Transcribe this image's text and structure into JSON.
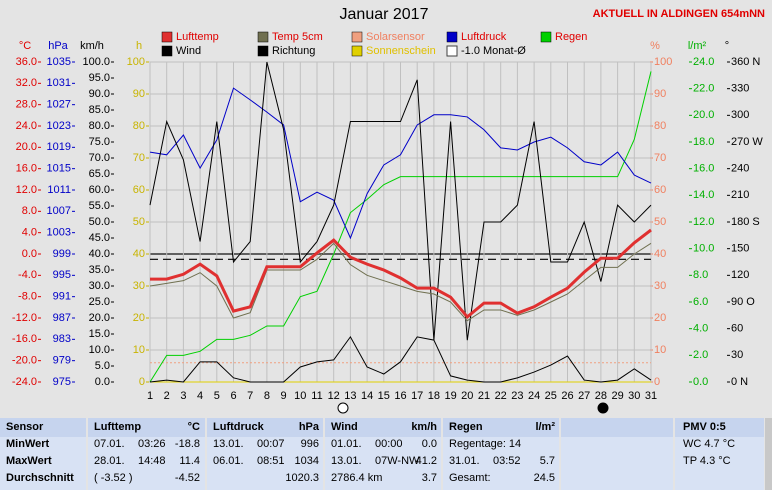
{
  "chart_data": {
    "type": "line",
    "title": "Januar 2017",
    "subtitle": "AKTUELL IN ALDINGEN 654mNN",
    "x": [
      1,
      2,
      3,
      4,
      5,
      6,
      7,
      8,
      9,
      10,
      11,
      12,
      13,
      14,
      15,
      16,
      17,
      18,
      19,
      20,
      21,
      22,
      23,
      24,
      25,
      26,
      27,
      28,
      29,
      30,
      31
    ],
    "xlim": [
      1,
      31
    ],
    "grid": true,
    "axes": {
      "temp": {
        "label": "°C",
        "lim": [
          -24,
          36
        ],
        "ticks": [
          {
            "value": 36,
            "label": "36.0"
          },
          {
            "value": 32,
            "label": "32.0"
          },
          {
            "value": 28,
            "label": "28.0"
          },
          {
            "value": 24,
            "label": "24.0"
          },
          {
            "value": 20,
            "label": "20.0"
          },
          {
            "value": 16,
            "label": "16.0"
          },
          {
            "value": 12,
            "label": "12.0"
          },
          {
            "value": 8,
            "label": "8.0"
          },
          {
            "value": 4,
            "label": "4.0"
          },
          {
            "value": 0,
            "label": "0.0"
          },
          {
            "value": -4,
            "label": "-4.0"
          },
          {
            "value": -8,
            "label": "-8.0"
          },
          {
            "value": -12,
            "label": "-12.0"
          },
          {
            "value": -16,
            "label": "-16.0"
          },
          {
            "value": -20,
            "label": "-20.0"
          },
          {
            "value": -24,
            "label": "-24.0"
          }
        ]
      },
      "hpa": {
        "label": "hPa",
        "lim": [
          975,
          1035
        ],
        "ticks": [
          1035,
          1031,
          1027,
          1023,
          1019,
          1015,
          1011,
          1007,
          1003,
          999,
          995,
          991,
          987,
          983,
          979,
          975
        ]
      },
      "kmh": {
        "label": "km/h",
        "lim": [
          0,
          100
        ],
        "ticks": [
          {
            "value": 100,
            "label": "100.0"
          },
          {
            "value": 95,
            "label": "95.0"
          },
          {
            "value": 90,
            "label": "90.0"
          },
          {
            "value": 85,
            "label": "85.0"
          },
          {
            "value": 80,
            "label": "80.0"
          },
          {
            "value": 75,
            "label": "75.0"
          },
          {
            "value": 70,
            "label": "70.0"
          },
          {
            "value": 65,
            "label": "65.0"
          },
          {
            "value": 60,
            "label": "60.0"
          },
          {
            "value": 55,
            "label": "55.0"
          },
          {
            "value": 50,
            "label": "50.0"
          },
          {
            "value": 45,
            "label": "45.0"
          },
          {
            "value": 40,
            "label": "40.0"
          },
          {
            "value": 35,
            "label": "35.0"
          },
          {
            "value": 30,
            "label": "30.0"
          },
          {
            "value": 25,
            "label": "25.0"
          },
          {
            "value": 20,
            "label": "20.0"
          },
          {
            "value": 15,
            "label": "15.0"
          },
          {
            "value": 10,
            "label": "10.0"
          },
          {
            "value": 5,
            "label": "5.0"
          },
          {
            "value": 0,
            "label": "0.0"
          }
        ]
      },
      "h": {
        "label": "h",
        "lim": [
          0,
          100
        ],
        "ticks": [
          100,
          90,
          80,
          70,
          60,
          50,
          40,
          30,
          20,
          10,
          0
        ]
      },
      "pct": {
        "label": "%",
        "lim": [
          0,
          100
        ],
        "ticks": [
          100,
          90,
          80,
          70,
          60,
          50,
          40,
          30,
          20,
          10,
          0
        ]
      },
      "rain": {
        "label": "l/m²",
        "lim": [
          0,
          24
        ],
        "ticks": [
          {
            "value": 24,
            "label": "24.0"
          },
          {
            "value": 22,
            "label": "22.0"
          },
          {
            "value": 20,
            "label": "20.0"
          },
          {
            "value": 18,
            "label": "18.0"
          },
          {
            "value": 16,
            "label": "16.0"
          },
          {
            "value": 14,
            "label": "14.0"
          },
          {
            "value": 12,
            "label": "12.0"
          },
          {
            "value": 10,
            "label": "10.0"
          },
          {
            "value": 8,
            "label": "8.0"
          },
          {
            "value": 6,
            "label": "6.0"
          },
          {
            "value": 4,
            "label": "4.0"
          },
          {
            "value": 2,
            "label": "2.0"
          },
          {
            "value": 0,
            "label": "0.0"
          }
        ]
      },
      "dir": {
        "label": "°",
        "lim": [
          0,
          360
        ],
        "ticks": [
          {
            "value": 360,
            "label": "360 N"
          },
          330,
          300,
          {
            "value": 270,
            "label": "270 W"
          },
          240,
          210,
          {
            "value": 180,
            "label": "180 S"
          },
          150,
          120,
          {
            "value": 90,
            "label": "90 O"
          },
          60,
          30,
          {
            "value": 0,
            "label": "0 N"
          }
        ]
      }
    },
    "series": [
      {
        "name": "Lufttemp",
        "color": "#e03030",
        "axis": "temp",
        "values": [
          -4.7,
          -4.7,
          -3.8,
          -1.9,
          -4.1,
          -10.7,
          -9.9,
          -2.4,
          -2.4,
          -2.4,
          0.2,
          2.6,
          -0.6,
          -1.9,
          -3.0,
          -4.5,
          -6.4,
          -6.4,
          -8.1,
          -11.8,
          -9.2,
          -9.2,
          -11.1,
          -9.9,
          -8.1,
          -6.4,
          -3.4,
          -0.8,
          -0.8,
          2.1,
          4.5
        ]
      },
      {
        "name": "Temp 5cm",
        "color": "#707050",
        "axis": "temp",
        "values": [
          -6.0,
          -5.5,
          -5.0,
          -3.5,
          -6.0,
          -12.0,
          -11.0,
          -3.0,
          -3.0,
          -3.0,
          -1.0,
          2.0,
          -2.0,
          -4.0,
          -5.0,
          -6.0,
          -7.0,
          -7.5,
          -9.0,
          -12.5,
          -10.5,
          -10.5,
          -11.5,
          -10.5,
          -9.0,
          -7.5,
          -5.0,
          -2.5,
          -2.5,
          0.0,
          2.0
        ]
      },
      {
        "name": "Solarsensor",
        "color": "#f0a080",
        "axis": "pct",
        "values": [
          6,
          6,
          6,
          6,
          6,
          6,
          6,
          6,
          6,
          6,
          6,
          6,
          6,
          6,
          6,
          6,
          6,
          6,
          6,
          6,
          6,
          6,
          6,
          6,
          6,
          6,
          6,
          6,
          6,
          6,
          6
        ]
      },
      {
        "name": "Luftdruck",
        "color": "#0000c8",
        "axis": "hpa",
        "values": [
          1018.1,
          1017.6,
          1021.3,
          1015.1,
          1020.4,
          1030.1,
          1027.9,
          1025.6,
          1023.2,
          1008.8,
          1010.6,
          1009.1,
          1002.0,
          1010.3,
          1015.7,
          1017.6,
          1023.2,
          1025.1,
          1025.1,
          1024.7,
          1022.3,
          1018.9,
          1018.5,
          1020.0,
          1020.9,
          1018.9,
          1016.3,
          1015.7,
          1018.1,
          1013.8,
          1012.3
        ]
      },
      {
        "name": "Regen",
        "color": "#00d000",
        "axis": "rain",
        "values": [
          0,
          2.0,
          2.0,
          2.3,
          3.2,
          3.2,
          3.5,
          4.2,
          4.2,
          6.4,
          6.8,
          9.6,
          12.7,
          13.7,
          14.8,
          15.4,
          15.4,
          15.4,
          15.4,
          15.4,
          15.4,
          15.4,
          15.4,
          15.4,
          15.4,
          15.4,
          15.4,
          15.4,
          15.4,
          18.2,
          23.3
        ]
      },
      {
        "name": "Wind",
        "color": "#000000",
        "axis": "kmh",
        "values": [
          0,
          0.6,
          0,
          6.3,
          6.3,
          1.3,
          0,
          0,
          0,
          4.7,
          6.3,
          6.9,
          14.1,
          4.7,
          2.5,
          6.3,
          14.1,
          13.1,
          1.9,
          0.6,
          0,
          0,
          1.3,
          3.1,
          5.3,
          8.1,
          0.6,
          0,
          0.6,
          4.1,
          0.6
        ]
      },
      {
        "name": "Richtung",
        "color": "#000000",
        "axis": "dir",
        "values": [
          199,
          293,
          250,
          158,
          293,
          135,
          158,
          360,
          284,
          135,
          158,
          199,
          293,
          293,
          293,
          293,
          340,
          47,
          293,
          47,
          180,
          180,
          199,
          293,
          135,
          135,
          180,
          113,
          199,
          180,
          199
        ]
      },
      {
        "name": "Sonnenschein",
        "color": "#e0d000",
        "axis": "h",
        "values": [
          0,
          0,
          0,
          0,
          0,
          0,
          0,
          0,
          0,
          0,
          0,
          0,
          0,
          0,
          0,
          0,
          0,
          0,
          0,
          0,
          0,
          0,
          0,
          0,
          0,
          0,
          0,
          0,
          0,
          0,
          0
        ]
      }
    ],
    "reference_lines": [
      {
        "name": "-1.0 Monat-Ø",
        "value": -1.0,
        "axis": "temp"
      }
    ]
  },
  "table": {
    "panels": [
      {
        "header": [
          "Sensor"
        ],
        "rows": [
          [
            "MinWert"
          ],
          [
            "MaxWert"
          ],
          [
            "Durchschnitt"
          ]
        ]
      },
      {
        "header": [
          "Lufttemp",
          "°C"
        ],
        "rows": [
          [
            "07.01.",
            "03:26",
            "-18.8"
          ],
          [
            "28.01.",
            "14:48",
            "11.4"
          ],
          [
            "( -3.52 )",
            null,
            "-4.52"
          ]
        ]
      },
      {
        "header": [
          "Luftdruck",
          "hPa"
        ],
        "rows": [
          [
            "13.01.",
            "00:07",
            "996"
          ],
          [
            "06.01.",
            "08:51",
            "1034"
          ],
          [
            null,
            null,
            "1020.3"
          ]
        ]
      },
      {
        "header": [
          "Wind",
          "km/h"
        ],
        "rows": [
          [
            "01.01.",
            "00:00",
            "0.0"
          ],
          [
            "13.01.",
            "07W-NW",
            "41.2"
          ],
          [
            "2786.4 km",
            null,
            "3.7"
          ]
        ]
      },
      {
        "header": [
          "Regen",
          "l/m²"
        ],
        "rows": [
          [
            "Regentage: 14",
            null,
            null
          ],
          [
            "31.01.",
            "03:52",
            "5.7"
          ],
          [
            "Gesamt:",
            null,
            "24.5"
          ]
        ]
      },
      {
        "header": [
          "PMV 0:5"
        ],
        "rows": [
          [
            "WC 4.7 °C"
          ],
          [
            "TP 4.3 °C"
          ]
        ]
      }
    ]
  }
}
